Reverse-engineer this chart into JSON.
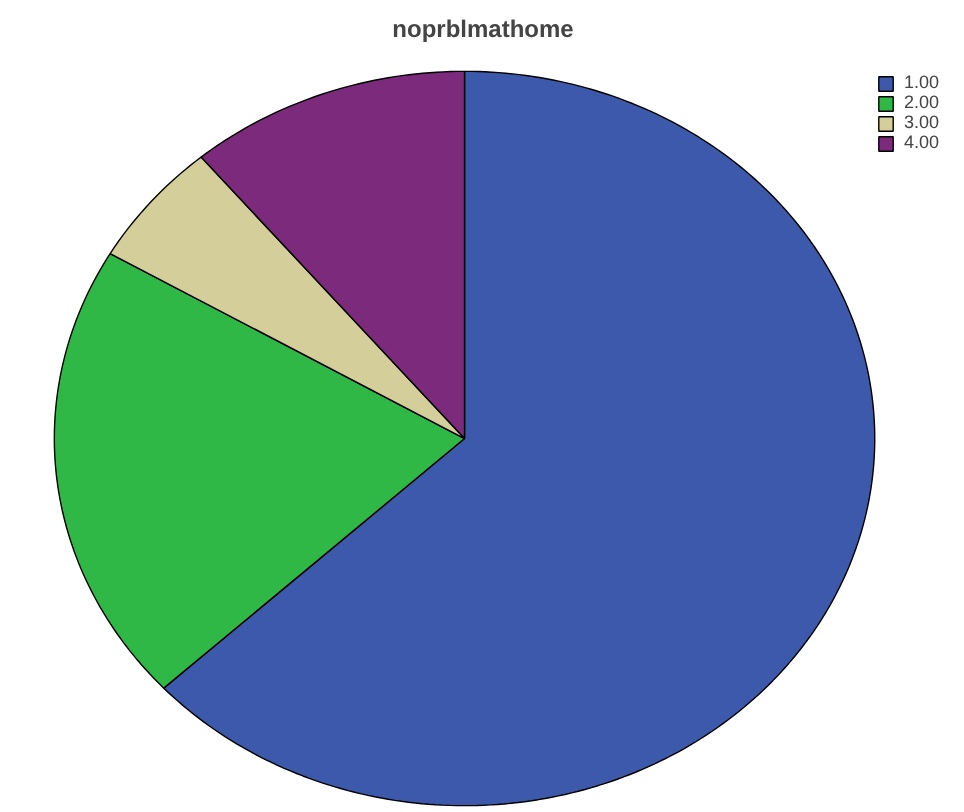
{
  "chart_data": {
    "type": "pie",
    "title": "noprblmathome",
    "categories": [
      "1.00",
      "2.00",
      "3.00",
      "4.00"
    ],
    "values": [
      63.1,
      20.3,
      5.5,
      11.1
    ],
    "colors": [
      "#3d59ab",
      "#2fb845",
      "#d4cf9a",
      "#7b2a7c"
    ],
    "legend": "top right"
  }
}
